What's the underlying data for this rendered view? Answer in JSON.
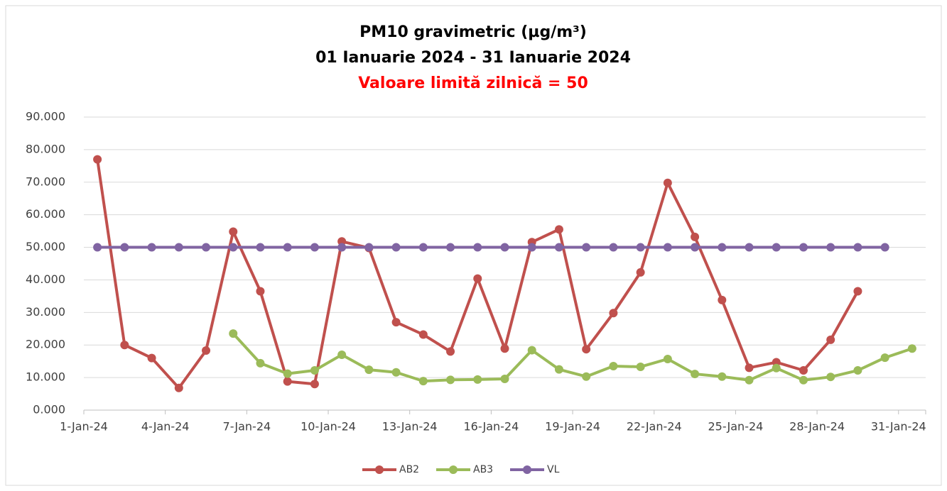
{
  "chart_data": {
    "type": "line",
    "title": "PM10 gravimetric (µg/m³)",
    "subtitle": "01 Ianuarie 2024 - 31 Ianuarie 2024",
    "annotation": "Valoare limită zilnică  = 50",
    "categories": [
      "1-Jan-24",
      null,
      null,
      "4-Jan-24",
      null,
      null,
      "7-Jan-24",
      null,
      null,
      "10-Jan-24",
      null,
      null,
      "13-Jan-24",
      null,
      null,
      "16-Jan-24",
      null,
      null,
      "19-Jan-24",
      null,
      null,
      "22-Jan-24",
      null,
      null,
      "25-Jan-24",
      null,
      null,
      "28-Jan-24",
      null,
      null,
      "31-Jan-24"
    ],
    "series": [
      {
        "name": "AB2",
        "color": "#c0504d",
        "values": [
          77,
          20,
          16,
          6.8,
          18.3,
          54.8,
          36.5,
          8.8,
          8,
          51.8,
          49.8,
          27,
          23.2,
          18,
          40.4,
          18.9,
          51.6,
          55.5,
          18.7,
          29.8,
          42.3,
          69.8,
          53.2,
          33.8,
          13,
          14.7,
          12.2,
          21.6,
          36.5,
          null,
          null
        ]
      },
      {
        "name": "AB3",
        "color": "#9bbb59",
        "values": [
          null,
          null,
          null,
          null,
          null,
          23.5,
          14.4,
          11.2,
          12.2,
          17,
          12.4,
          11.6,
          8.9,
          9.3,
          9.4,
          9.6,
          18.4,
          12.5,
          10.3,
          13.5,
          13.3,
          15.7,
          11.1,
          10.3,
          9.2,
          12.9,
          9.2,
          10.2,
          12.2,
          16.1,
          18.9
        ]
      },
      {
        "name": "VL",
        "color": "#8064a2",
        "values": [
          50,
          50,
          50,
          50,
          50,
          50,
          50,
          50,
          50,
          50,
          50,
          50,
          50,
          50,
          50,
          50,
          50,
          50,
          50,
          50,
          50,
          50,
          50,
          50,
          50,
          50,
          50,
          50,
          50,
          50,
          null
        ]
      }
    ],
    "ylim": [
      0,
      90
    ],
    "yticks": [
      {
        "value": 0,
        "label": "0.000"
      },
      {
        "value": 10,
        "label": "10.000"
      },
      {
        "value": 20,
        "label": "20.000"
      },
      {
        "value": 30,
        "label": "30.000"
      },
      {
        "value": 40,
        "label": "40.000"
      },
      {
        "value": 50,
        "label": "50.000"
      },
      {
        "value": 60,
        "label": "60.000"
      },
      {
        "value": 70,
        "label": "70.000"
      },
      {
        "value": 80,
        "label": "80.000"
      },
      {
        "value": 90,
        "label": "90.000"
      }
    ],
    "grid": true,
    "legend": "bottom"
  }
}
